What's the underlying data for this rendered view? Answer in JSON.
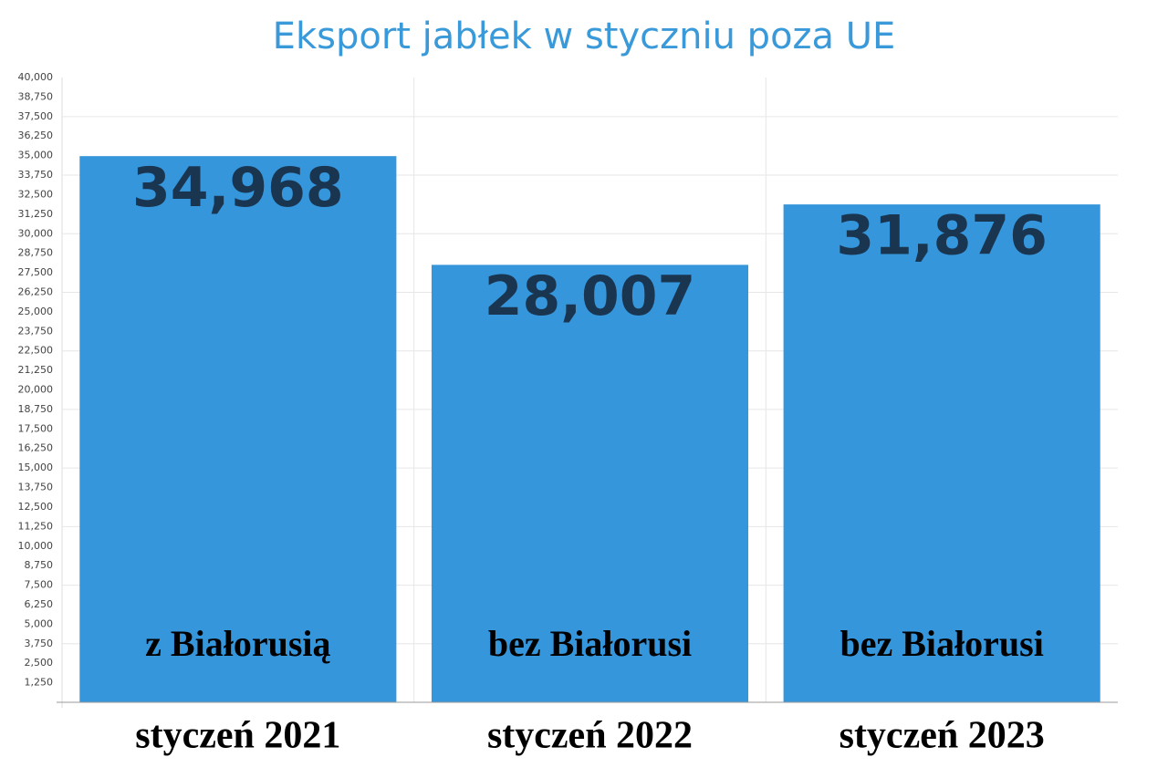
{
  "chart_data": {
    "type": "bar",
    "title": "Eksport jabłek w styczniu poza UE",
    "categories": [
      "styczeń 2021",
      "styczeń 2022",
      "styczeń 2023"
    ],
    "values": [
      34968,
      28007,
      31876
    ],
    "value_labels": [
      "34,968",
      "28,007",
      "31,876"
    ],
    "annotations": [
      "z Białorusią",
      "bez Białorusi",
      "bez Białorusi"
    ],
    "color": "#3596dc",
    "ylim": [
      0,
      40000
    ],
    "yticks": [
      {
        "value": 1250,
        "label": "1,250"
      },
      {
        "value": 2500,
        "label": "2,500"
      },
      {
        "value": 3750,
        "label": "3,750"
      },
      {
        "value": 5000,
        "label": "5,000"
      },
      {
        "value": 6250,
        "label": "6,250"
      },
      {
        "value": 7500,
        "label": "7,500"
      },
      {
        "value": 8750,
        "label": "8,750"
      },
      {
        "value": 10000,
        "label": "10,000"
      },
      {
        "value": 11250,
        "label": "11,250"
      },
      {
        "value": 12500,
        "label": "12,500"
      },
      {
        "value": 13750,
        "label": "13,750"
      },
      {
        "value": 15000,
        "label": "15,000"
      },
      {
        "value": 16250,
        "label": "16,250"
      },
      {
        "value": 17500,
        "label": "17,500"
      },
      {
        "value": 18750,
        "label": "18,750"
      },
      {
        "value": 20000,
        "label": "20,000"
      },
      {
        "value": 21250,
        "label": "21,250"
      },
      {
        "value": 22500,
        "label": "22,500"
      },
      {
        "value": 23750,
        "label": "23,750"
      },
      {
        "value": 25000,
        "label": "25,000"
      },
      {
        "value": 26250,
        "label": "26,250"
      },
      {
        "value": 27500,
        "label": "27,500"
      },
      {
        "value": 28750,
        "label": "28,750"
      },
      {
        "value": 30000,
        "label": "30,000"
      },
      {
        "value": 31250,
        "label": "31,250"
      },
      {
        "value": 32500,
        "label": "32,500"
      },
      {
        "value": 33750,
        "label": "33,750"
      },
      {
        "value": 35000,
        "label": "35,000"
      },
      {
        "value": 36250,
        "label": "36,250"
      },
      {
        "value": 37500,
        "label": "37,500"
      },
      {
        "value": 38750,
        "label": "38,750"
      },
      {
        "value": 40000,
        "label": "40,000"
      }
    ],
    "grid": true
  }
}
